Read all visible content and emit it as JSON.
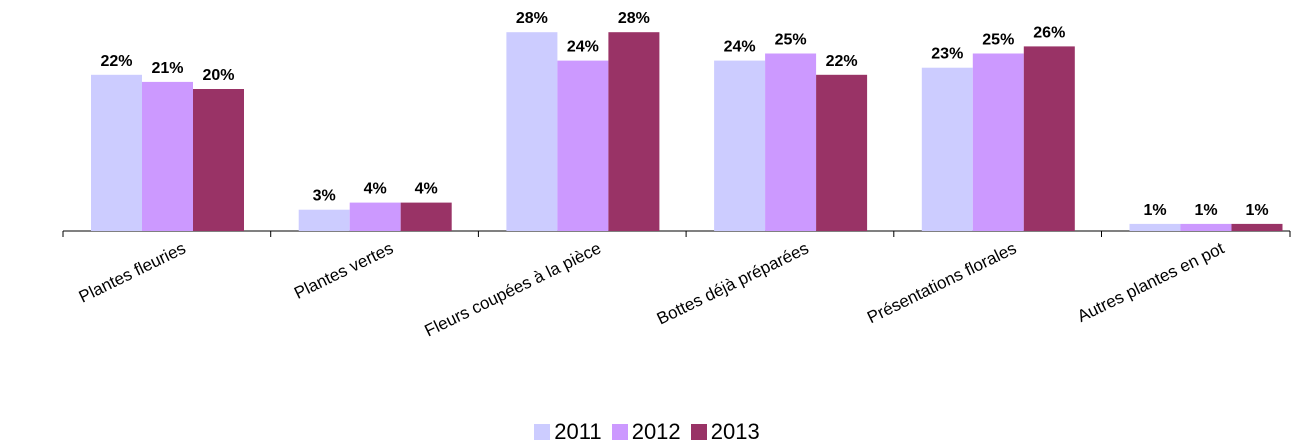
{
  "chart_data": {
    "type": "bar",
    "categories": [
      "Plantes fleuries",
      "Plantes vertes",
      "Fleurs coupées à la pièce",
      "Bottes déjà préparées",
      "Présentations florales",
      "Autres plantes en pot"
    ],
    "series": [
      {
        "name": "2011",
        "color": "#ccccff",
        "values": [
          22,
          3,
          28,
          24,
          23,
          1
        ],
        "labels": [
          "22%",
          "3%",
          "28%",
          "24%",
          "23%",
          "1%"
        ]
      },
      {
        "name": "2012",
        "color": "#cc99ff",
        "values": [
          21,
          4,
          24,
          25,
          25,
          1
        ],
        "labels": [
          "21%",
          "4%",
          "24%",
          "25%",
          "25%",
          "1%"
        ]
      },
      {
        "name": "2013",
        "color": "#993366",
        "values": [
          20,
          4,
          28,
          22,
          26,
          1
        ],
        "labels": [
          "20%",
          "4%",
          "28%",
          "22%",
          "26%",
          "1%"
        ]
      }
    ],
    "ylim": [
      0,
      31
    ],
    "grid": false,
    "legend_position": "bottom"
  }
}
